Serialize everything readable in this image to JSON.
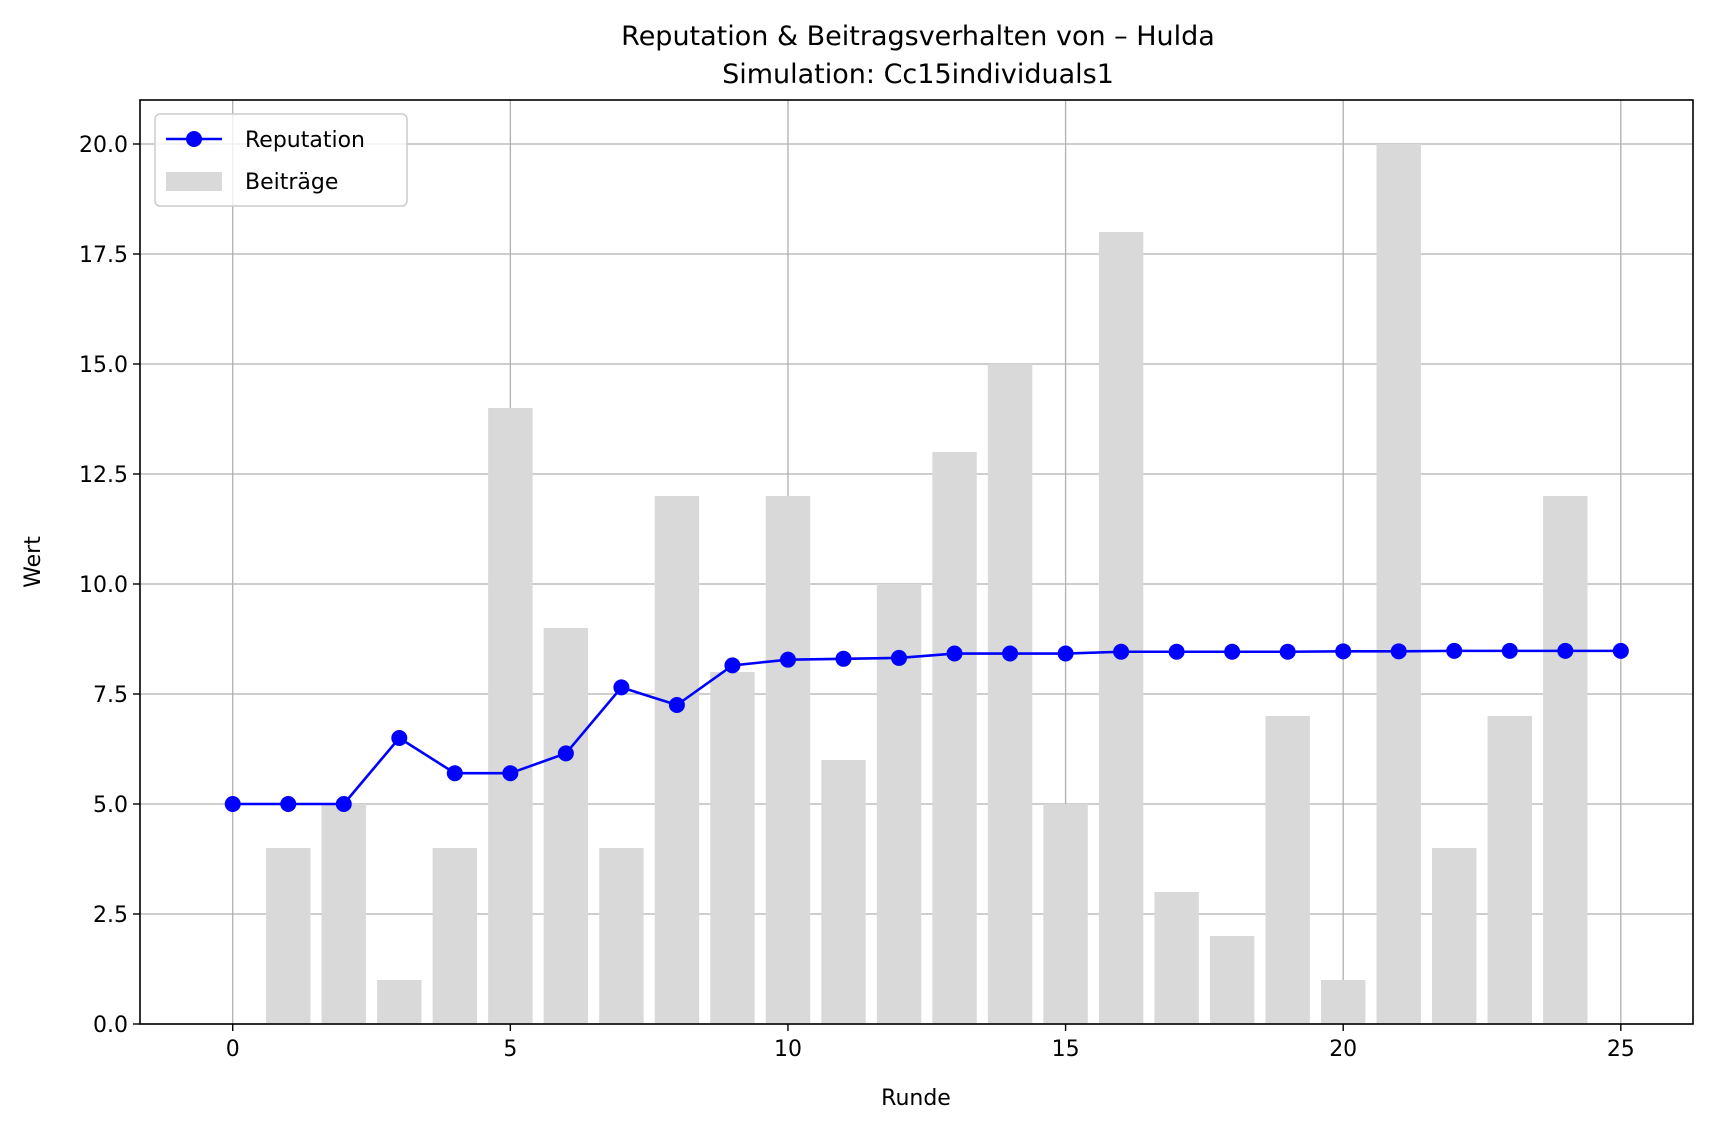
{
  "chart_data": {
    "type": "bar",
    "title": "Reputation & Beitragsverhalten von – Hulda",
    "subtitle": "Simulation: Cc15individuals1",
    "xlabel": "Runde",
    "ylabel": "Wert",
    "xlim": [
      -1.67,
      26.3
    ],
    "ylim": [
      0,
      21
    ],
    "x_ticks": [
      0,
      5,
      10,
      15,
      20,
      25
    ],
    "y_ticks": [
      0,
      2.5,
      5,
      7.5,
      10,
      12.5,
      15,
      17.5,
      20
    ],
    "grid": true,
    "legend_position": "top-left",
    "series": [
      {
        "name": "Reputation",
        "kind": "line",
        "color": "#0000ff",
        "marker": "circle",
        "x": [
          0,
          1,
          2,
          3,
          4,
          5,
          6,
          7,
          8,
          9,
          10,
          11,
          12,
          13,
          14,
          15,
          16,
          17,
          18,
          19,
          20,
          21,
          22,
          23,
          24,
          25
        ],
        "values": [
          5.0,
          5.0,
          5.0,
          6.5,
          5.7,
          5.7,
          6.15,
          7.65,
          7.25,
          8.15,
          8.28,
          8.3,
          8.32,
          8.42,
          8.42,
          8.42,
          8.46,
          8.46,
          8.46,
          8.46,
          8.47,
          8.47,
          8.48,
          8.48,
          8.48,
          8.48
        ]
      },
      {
        "name": "Beiträge",
        "kind": "bar",
        "color": "#d9d9d9",
        "x": [
          1,
          2,
          3,
          4,
          5,
          6,
          7,
          8,
          9,
          10,
          11,
          12,
          13,
          14,
          15,
          16,
          17,
          18,
          19,
          20,
          21,
          22,
          23,
          24
        ],
        "values": [
          4,
          5,
          1,
          4,
          14,
          9,
          4,
          12,
          8,
          12,
          6,
          10,
          13,
          15,
          5,
          18,
          3,
          2,
          7,
          1,
          20,
          4,
          7,
          12
        ]
      }
    ]
  }
}
